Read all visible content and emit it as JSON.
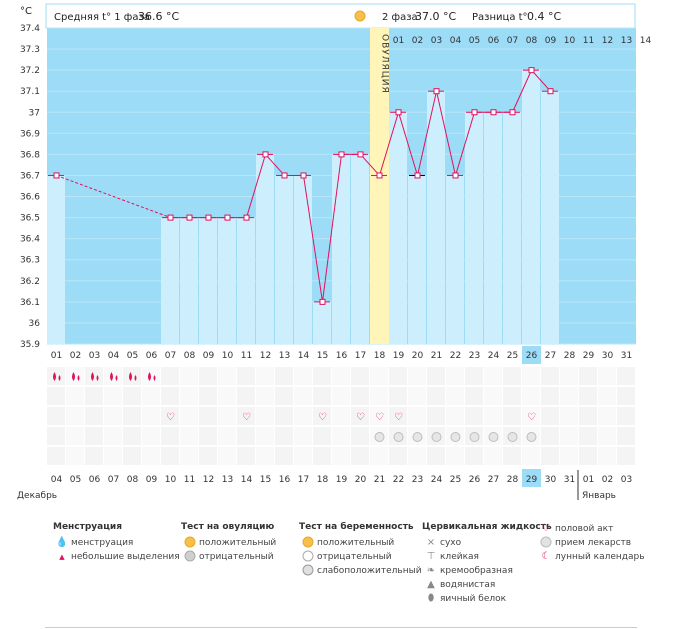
{
  "header": {
    "unit": "°C",
    "phase1_label": "Средняя t° 1 фаза",
    "phase1_value": "36.6 °C",
    "phase2_label": "2 фаза",
    "phase2_value": "37.0 °C",
    "diff_label": "Разница t°",
    "diff_value": "0.4 °C"
  },
  "ovulation_label": "ОВУЛЯЦИЯ",
  "cycle_day_labels": [
    "01",
    "02",
    "03",
    "04",
    "05",
    "06",
    "07",
    "08",
    "09",
    "10",
    "11",
    "12",
    "13",
    "14"
  ],
  "chart_data": {
    "type": "line",
    "title": "",
    "ylabel": "°C",
    "ylim": [
      35.9,
      37.4
    ],
    "yticks": [
      "35.9",
      "36",
      "36.1",
      "36.2",
      "36.3",
      "36.4",
      "36.5",
      "36.6",
      "36.7",
      "36.8",
      "36.9",
      "37",
      "37.1",
      "37.2",
      "37.3",
      "37.4"
    ],
    "days": [
      "01",
      "02",
      "03",
      "04",
      "05",
      "06",
      "07",
      "08",
      "09",
      "10",
      "11",
      "12",
      "13",
      "14",
      "15",
      "16",
      "17",
      "18",
      "19",
      "20",
      "21",
      "22",
      "23",
      "24",
      "25",
      "26",
      "27",
      "28",
      "29",
      "30",
      "31"
    ],
    "highlight_day": "26",
    "temperatures": [
      36.7,
      null,
      null,
      null,
      null,
      null,
      36.5,
      36.5,
      36.5,
      36.5,
      36.5,
      36.8,
      36.7,
      36.7,
      36.1,
      36.8,
      36.8,
      36.7,
      37.0,
      36.7,
      37.1,
      36.7,
      37.0,
      37.0,
      37.0,
      37.2,
      37.1,
      null,
      null,
      null,
      null
    ],
    "ovulation_day_index": 17,
    "dashed_segment": [
      0,
      6
    ]
  },
  "rows": {
    "menstruation_days": [
      0,
      1,
      2,
      3,
      4,
      5
    ],
    "intercourse_days": [
      6,
      10,
      14,
      16,
      17,
      18,
      25
    ],
    "medication_days": [
      17,
      18,
      19,
      20,
      21,
      22,
      23,
      24,
      25
    ]
  },
  "dates": {
    "labels": [
      "04",
      "05",
      "06",
      "07",
      "08",
      "09",
      "10",
      "11",
      "12",
      "13",
      "14",
      "15",
      "16",
      "17",
      "18",
      "19",
      "20",
      "21",
      "22",
      "23",
      "24",
      "25",
      "26",
      "27",
      "28",
      "29",
      "30",
      "31",
      "01",
      "02",
      "03"
    ],
    "red_indices": [
      3,
      4,
      10,
      11,
      17,
      18,
      24
    ],
    "highlight_index": 25,
    "month_left": "Декабрь",
    "month_right": "Январь"
  },
  "legend": {
    "menstruation": {
      "title": "Менструация",
      "items": [
        "менструация",
        "небольшие выделения"
      ]
    },
    "ovulation_test": {
      "title": "Тест на овуляцию",
      "items": [
        "положительный",
        "отрицательный"
      ]
    },
    "pregnancy_test": {
      "title": "Тест на беременность",
      "items": [
        "положительный",
        "отрицательный",
        "слабоположительный"
      ]
    },
    "cervical": {
      "title": "Цервикальная жидкость",
      "items": [
        "сухо",
        "клейкая",
        "кремообразная",
        "водянистая",
        "яичный белок"
      ]
    },
    "other": {
      "items": [
        "половой акт",
        "прием лекарств",
        "лунный календарь"
      ]
    }
  },
  "colors": {
    "sky": "#9ddcf6",
    "bar": "#cdeefd",
    "ovulation": "#fff5b8",
    "line": "#e0115f",
    "highlight": "#9ddcf6",
    "red": "#e0115f"
  }
}
